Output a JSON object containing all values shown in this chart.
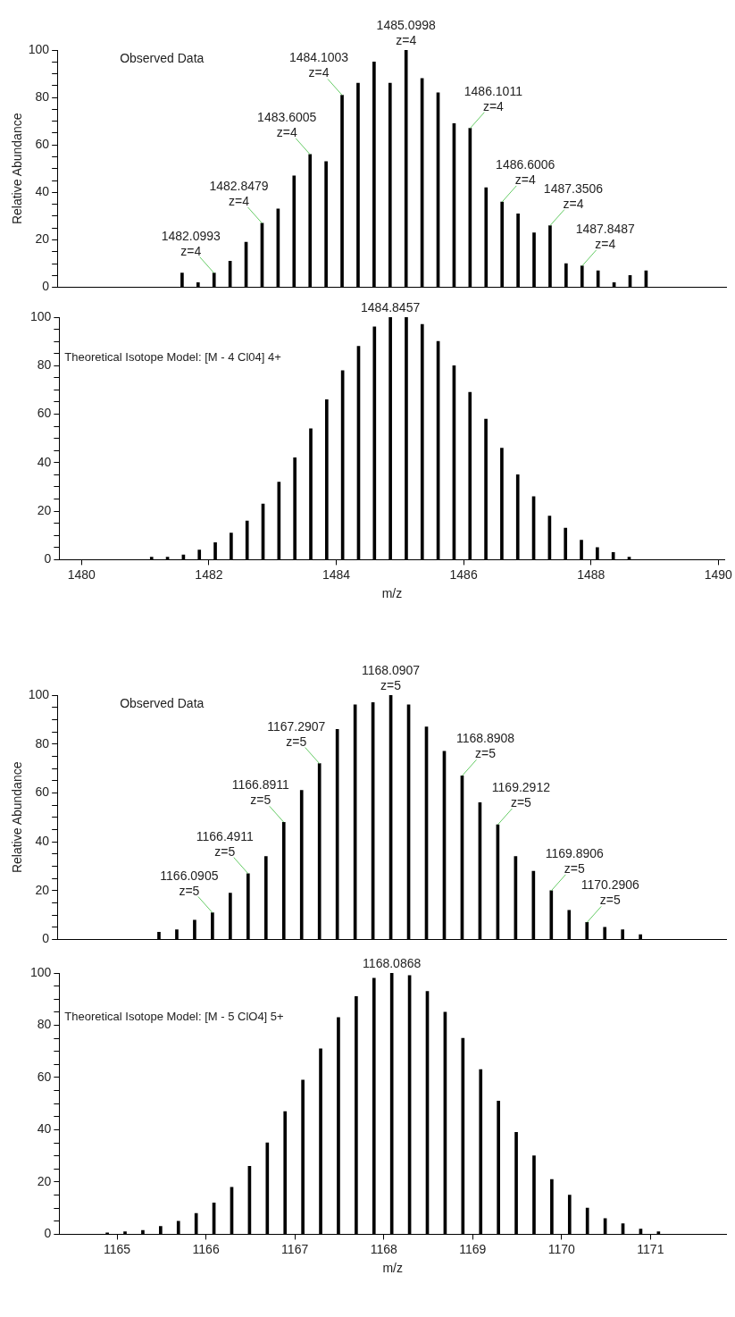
{
  "chart_data": [
    {
      "type": "bar",
      "color": "#000000",
      "ylabel": "Relative Abundance",
      "tick_labels": "y",
      "grid": false,
      "legend": false,
      "x": [
        1481.6,
        1481.85,
        1482.1,
        1482.35,
        1482.6,
        1482.85,
        1483.1,
        1483.35,
        1483.6,
        1483.85,
        1484.1,
        1484.35,
        1484.6,
        1484.85,
        1485.1,
        1485.35,
        1485.6,
        1485.85,
        1486.1,
        1486.35,
        1486.6,
        1486.85,
        1487.1,
        1487.35,
        1487.6,
        1487.85,
        1488.1,
        1488.35,
        1488.6,
        1488.85
      ],
      "values": [
        6,
        2,
        6,
        11,
        19,
        27,
        33,
        47,
        56,
        53,
        81,
        86,
        95,
        86,
        100,
        88,
        82,
        69,
        67,
        42,
        36,
        31,
        23,
        26,
        10,
        9,
        7,
        2,
        5,
        7
      ],
      "xlim": [
        1479.65,
        1490.1
      ],
      "xticks": [
        1480,
        1482,
        1484,
        1486,
        1488,
        1490
      ],
      "ylim": [
        0,
        100
      ],
      "yticks": [
        0,
        {
          "value": 5,
          "label": null
        },
        {
          "value": 10,
          "label": null
        },
        {
          "value": 15,
          "label": null
        },
        20,
        {
          "value": 25,
          "label": null
        },
        {
          "value": 30,
          "label": null
        },
        {
          "value": 35,
          "label": null
        },
        40,
        {
          "value": 45,
          "label": null
        },
        {
          "value": 50,
          "label": null
        },
        {
          "value": 55,
          "label": null
        },
        60,
        {
          "value": 65,
          "label": null
        },
        {
          "value": 70,
          "label": null
        },
        {
          "value": 75,
          "label": null
        },
        80,
        {
          "value": 85,
          "label": null
        },
        {
          "value": 90,
          "label": null
        },
        {
          "value": 95,
          "label": null
        },
        100
      ],
      "annotations": [
        "Observed Data",
        {
          "text": "1482.0993\nz=4",
          "x": 1482.1,
          "y": 6
        },
        {
          "text": "1482.8479\nz=4",
          "x": 1482.85,
          "y": 27
        },
        {
          "text": "1483.6005\nz=4",
          "x": 1483.6,
          "y": 56
        },
        {
          "text": "1484.1003\nz=4",
          "x": 1484.1,
          "y": 81
        },
        {
          "text": "1485.0998\nz=4",
          "x": 1485.1,
          "y": 100
        },
        {
          "text": "1486.1011\nz=4",
          "x": 1486.1,
          "y": 67
        },
        {
          "text": "1486.6006\nz=4",
          "x": 1486.6,
          "y": 36
        },
        {
          "text": "1487.3506\nz=4",
          "x": 1487.35,
          "y": 26
        },
        {
          "text": "1487.8487\nz=4",
          "x": 1487.85,
          "y": 9
        }
      ]
    },
    {
      "type": "bar",
      "color": "#000000",
      "xlabel": "m/z",
      "grid": false,
      "legend": false,
      "x": [
        1481.1,
        1481.35,
        1481.6,
        1481.85,
        1482.1,
        1482.35,
        1482.6,
        1482.85,
        1483.1,
        1483.35,
        1483.6,
        1483.85,
        1484.1,
        1484.35,
        1484.6,
        1484.85,
        1485.1,
        1485.35,
        1485.6,
        1485.85,
        1486.1,
        1486.35,
        1486.6,
        1486.85,
        1487.1,
        1487.35,
        1487.6,
        1487.85,
        1488.1,
        1488.35,
        1488.6
      ],
      "values": [
        1,
        1,
        2,
        4,
        7,
        11,
        16,
        23,
        32,
        42,
        54,
        66,
        78,
        88,
        96,
        100,
        100,
        97,
        90,
        80,
        69,
        58,
        46,
        35,
        26,
        18,
        13,
        8,
        5,
        3,
        1
      ],
      "xlim": [
        1479.65,
        1490.1
      ],
      "xticks": [
        1480,
        1482,
        1484,
        1486,
        1488,
        1490
      ],
      "ylim": [
        0,
        100
      ],
      "yticks": [
        0,
        {
          "value": 5,
          "label": null
        },
        {
          "value": 10,
          "label": null
        },
        {
          "value": 15,
          "label": null
        },
        20,
        {
          "value": 25,
          "label": null
        },
        {
          "value": 30,
          "label": null
        },
        {
          "value": 35,
          "label": null
        },
        40,
        {
          "value": 45,
          "label": null
        },
        {
          "value": 50,
          "label": null
        },
        {
          "value": 55,
          "label": null
        },
        60,
        {
          "value": 65,
          "label": null
        },
        {
          "value": 70,
          "label": null
        },
        {
          "value": 75,
          "label": null
        },
        80,
        {
          "value": 85,
          "label": null
        },
        {
          "value": 90,
          "label": null
        },
        {
          "value": 95,
          "label": null
        },
        100
      ],
      "annotations": [
        "Theoretical Isotope Model: [M - 4 Cl04] 4+",
        {
          "text": "1484.8457",
          "x": 1484.85,
          "y": 100
        }
      ]
    },
    {
      "type": "bar",
      "color": "#000000",
      "ylabel": "Relative Abundance",
      "tick_labels": "y",
      "grid": false,
      "legend": false,
      "x": [
        1165.49,
        1165.69,
        1165.89,
        1166.09,
        1166.29,
        1166.49,
        1166.69,
        1166.89,
        1167.09,
        1167.29,
        1167.49,
        1167.69,
        1167.89,
        1168.09,
        1168.29,
        1168.49,
        1168.69,
        1168.89,
        1169.09,
        1169.29,
        1169.49,
        1169.69,
        1169.89,
        1170.09,
        1170.29,
        1170.49,
        1170.69,
        1170.89
      ],
      "values": [
        3,
        4,
        8,
        11,
        19,
        27,
        34,
        48,
        61,
        72,
        86,
        96,
        97,
        100,
        96,
        87,
        77,
        67,
        56,
        47,
        34,
        28,
        20,
        12,
        7,
        5,
        4,
        2
      ],
      "xlim": [
        1164.35,
        1171.85
      ],
      "xticks": [
        1165,
        1166,
        1167,
        1168,
        1169,
        1170,
        1171
      ],
      "ylim": [
        0,
        100
      ],
      "yticks": [
        0,
        {
          "value": 5,
          "label": null
        },
        {
          "value": 10,
          "label": null
        },
        {
          "value": 15,
          "label": null
        },
        20,
        {
          "value": 25,
          "label": null
        },
        {
          "value": 30,
          "label": null
        },
        {
          "value": 35,
          "label": null
        },
        40,
        {
          "value": 45,
          "label": null
        },
        {
          "value": 50,
          "label": null
        },
        {
          "value": 55,
          "label": null
        },
        60,
        {
          "value": 65,
          "label": null
        },
        {
          "value": 70,
          "label": null
        },
        {
          "value": 75,
          "label": null
        },
        80,
        {
          "value": 85,
          "label": null
        },
        {
          "value": 90,
          "label": null
        },
        {
          "value": 95,
          "label": null
        },
        100
      ],
      "annotations": [
        "Observed Data",
        {
          "text": "1166.0905\nz=5",
          "x": 1166.09,
          "y": 11
        },
        {
          "text": "1166.4911\nz=5",
          "x": 1166.49,
          "y": 27
        },
        {
          "text": "1166.8911\nz=5",
          "x": 1166.89,
          "y": 48
        },
        {
          "text": "1167.2907\nz=5",
          "x": 1167.29,
          "y": 72
        },
        {
          "text": "1168.0907\nz=5",
          "x": 1168.09,
          "y": 100
        },
        {
          "text": "1168.8908\nz=5",
          "x": 1168.89,
          "y": 67
        },
        {
          "text": "1169.2912\nz=5",
          "x": 1169.29,
          "y": 47
        },
        {
          "text": "1169.8906\nz=5",
          "x": 1169.89,
          "y": 20
        },
        {
          "text": "1170.2906\nz=5",
          "x": 1170.29,
          "y": 7
        }
      ]
    },
    {
      "type": "bar",
      "color": "#000000",
      "xlabel": "m/z",
      "grid": false,
      "legend": false,
      "x": [
        1164.89,
        1165.09,
        1165.29,
        1165.49,
        1165.69,
        1165.89,
        1166.09,
        1166.29,
        1166.49,
        1166.69,
        1166.89,
        1167.09,
        1167.29,
        1167.49,
        1167.69,
        1167.89,
        1168.09,
        1168.29,
        1168.49,
        1168.69,
        1168.89,
        1169.09,
        1169.29,
        1169.49,
        1169.69,
        1169.89,
        1170.09,
        1170.29,
        1170.49,
        1170.69,
        1170.89,
        1171.09
      ],
      "values": [
        0.5,
        1,
        1.5,
        3,
        5,
        8,
        12,
        18,
        26,
        35,
        47,
        59,
        71,
        83,
        91,
        98,
        100,
        99,
        93,
        85,
        75,
        63,
        51,
        39,
        30,
        21,
        15,
        10,
        6,
        4,
        2,
        1
      ],
      "xlim": [
        1164.35,
        1171.85
      ],
      "xticks": [
        1165,
        1166,
        1167,
        1168,
        1169,
        1170,
        1171
      ],
      "ylim": [
        0,
        100
      ],
      "yticks": [
        0,
        {
          "value": 5,
          "label": null
        },
        {
          "value": 10,
          "label": null
        },
        {
          "value": 15,
          "label": null
        },
        20,
        {
          "value": 25,
          "label": null
        },
        {
          "value": 30,
          "label": null
        },
        {
          "value": 35,
          "label": null
        },
        40,
        {
          "value": 45,
          "label": null
        },
        {
          "value": 50,
          "label": null
        },
        {
          "value": 55,
          "label": null
        },
        60,
        {
          "value": 65,
          "label": null
        },
        {
          "value": 70,
          "label": null
        },
        {
          "value": 75,
          "label": null
        },
        80,
        {
          "value": 85,
          "label": null
        },
        {
          "value": 90,
          "label": null
        },
        {
          "value": 95,
          "label": null
        },
        100
      ],
      "annotations": [
        "Theoretical Isotope Model: [M - 5 ClO4] 5+",
        {
          "text": "1168.0868",
          "x": 1168.09,
          "y": 100
        }
      ]
    }
  ]
}
